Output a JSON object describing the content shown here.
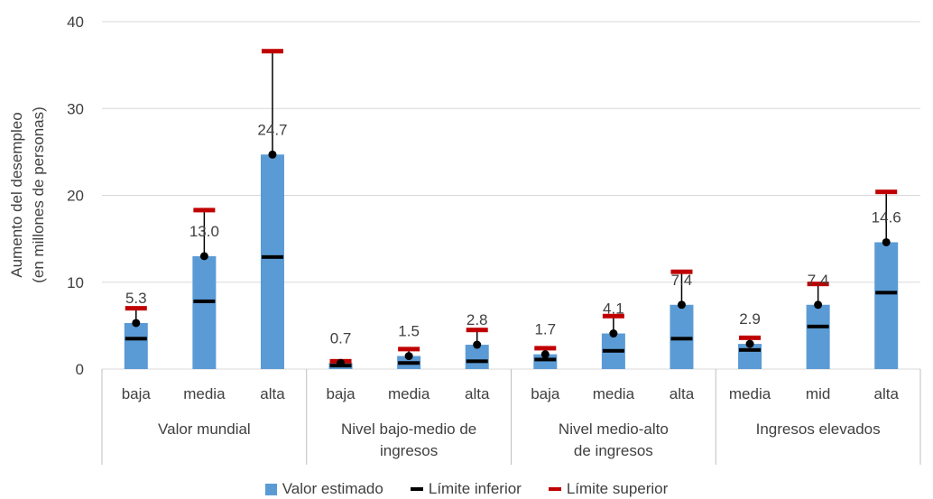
{
  "chart_data": {
    "type": "bar",
    "ylabel": "Aumento del desempleo\n(en millones de personas)",
    "ylim": [
      0,
      40
    ],
    "yticks": [
      0,
      10,
      20,
      30,
      40
    ],
    "grid": true,
    "groups": [
      {
        "label": "Valor mundial",
        "categories": [
          "baja",
          "media",
          "alta"
        ]
      },
      {
        "label": "Nivel bajo-medio de\ningresos",
        "categories": [
          "baja",
          "media",
          "alta"
        ]
      },
      {
        "label": "Nivel medio-alto\nde ingresos",
        "categories": [
          "baja",
          "media",
          "alta"
        ]
      },
      {
        "label": "Ingresos elevados",
        "categories": [
          "media",
          "mid",
          "alta"
        ]
      }
    ],
    "series": [
      {
        "name": "Valor estimado",
        "values": [
          5.3,
          13.0,
          24.7,
          0.7,
          1.5,
          2.8,
          1.7,
          4.1,
          7.4,
          2.9,
          7.4,
          14.6
        ]
      },
      {
        "name": "Límite inferior",
        "values": [
          3.5,
          7.8,
          12.9,
          0.4,
          0.7,
          0.9,
          1.1,
          2.1,
          3.5,
          2.2,
          4.9,
          8.8
        ]
      },
      {
        "name": "Límite superior",
        "values": [
          7.0,
          18.3,
          36.6,
          0.9,
          2.3,
          4.5,
          2.4,
          6.1,
          11.2,
          3.6,
          9.8,
          20.4
        ]
      }
    ],
    "data_labels": [
      "5.3",
      "13.0",
      "24.7",
      "0.7",
      "1.5",
      "2.8",
      "1.7",
      "4.1",
      "7.4",
      "2.9",
      "7.4",
      "14.6"
    ],
    "legend_position": "bottom",
    "colors": {
      "bar": "#5b9bd5",
      "lower": "#000000",
      "upper": "#c00000",
      "grid": "#d9d9d9",
      "axis": "#bfbfbf"
    }
  }
}
